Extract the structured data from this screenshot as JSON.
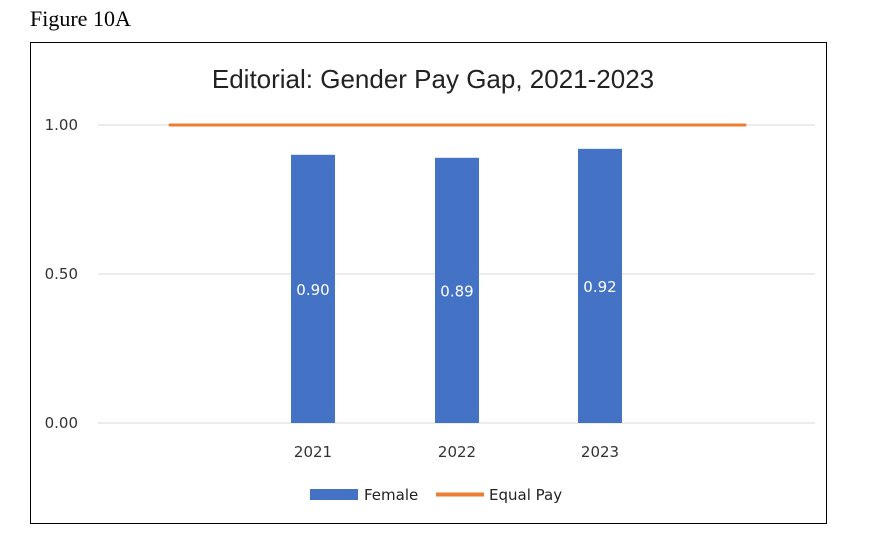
{
  "figure_label": "Figure 10A",
  "chart_data": {
    "type": "bar",
    "title": "Editorial: Gender Pay Gap, 2021-2023",
    "categories": [
      "2021",
      "2022",
      "2023"
    ],
    "series": [
      {
        "name": "Female",
        "values": [
          0.9,
          0.89,
          0.92
        ],
        "data_labels": [
          "0.90",
          "0.89",
          "0.92"
        ],
        "color": "#4472C4"
      },
      {
        "name": "Equal Pay",
        "type": "line",
        "value": 1.0,
        "color": "#ED7D31"
      }
    ],
    "y_ticks": [
      "0.00",
      "0.50",
      "1.00"
    ],
    "ylim": [
      0,
      1.0
    ],
    "grid": true,
    "legend": "bottom"
  }
}
